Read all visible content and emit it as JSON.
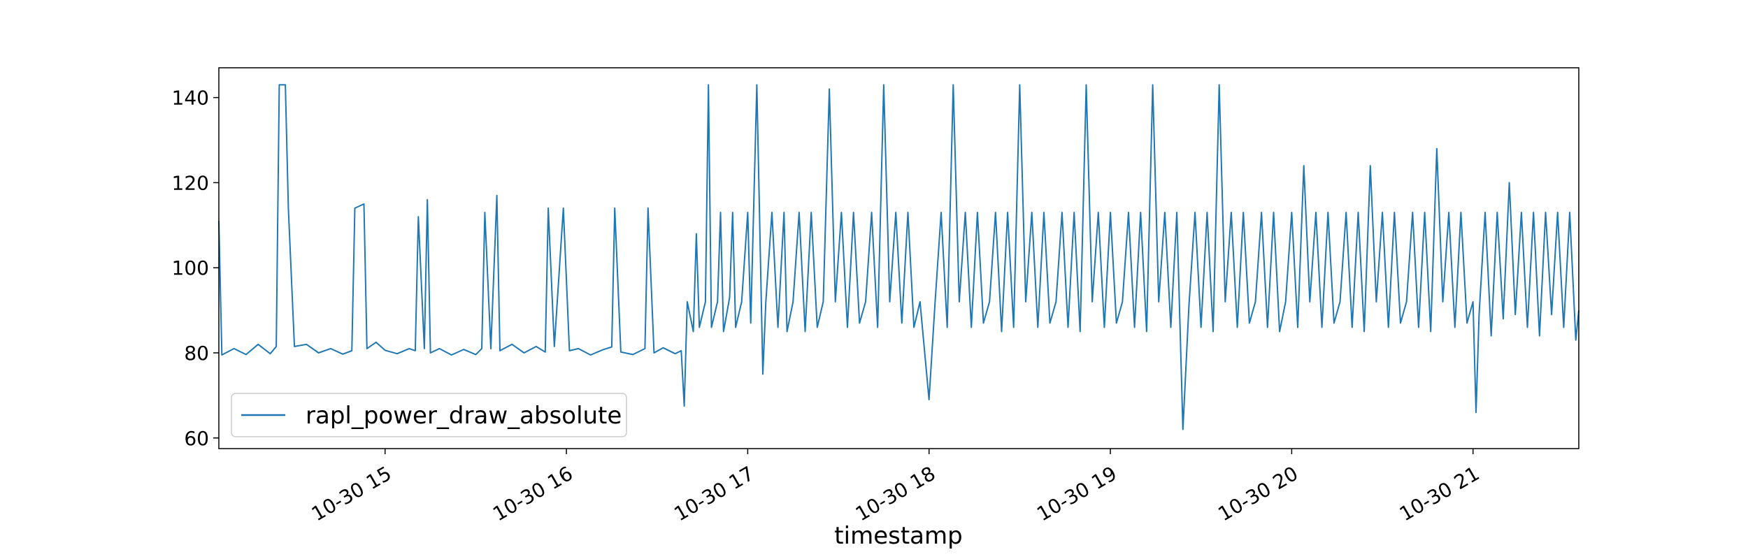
{
  "chart_data": {
    "type": "line",
    "title": "",
    "xlabel": "timestamp",
    "ylabel": "",
    "x_axis": {
      "type": "time",
      "start": "2023-10-30T14:05",
      "end": "2023-10-30T21:35",
      "tick_values": [
        "2023-10-30T15:00",
        "2023-10-30T16:00",
        "2023-10-30T17:00",
        "2023-10-30T18:00",
        "2023-10-30T19:00",
        "2023-10-30T20:00",
        "2023-10-30T21:00"
      ],
      "tick_labels": [
        "10-30 15",
        "10-30 16",
        "10-30 17",
        "10-30 18",
        "10-30 19",
        "10-30 20",
        "10-30 21"
      ]
    },
    "y_axis": {
      "ylim": [
        57.5,
        147
      ],
      "ticks": [
        60,
        80,
        100,
        120,
        140
      ]
    },
    "grid": false,
    "legend": {
      "placement": "lower-left"
    },
    "series": [
      {
        "name": "rapl_power_draw_absolute",
        "color": "#1f77b4",
        "points": [
          [
            "14:05",
            111
          ],
          [
            "14:06",
            79.5
          ],
          [
            "14:10",
            81
          ],
          [
            "14:14",
            79.6
          ],
          [
            "14:18",
            82
          ],
          [
            "14:22",
            79.8
          ],
          [
            "14:24",
            81.5
          ],
          [
            "14:25",
            143
          ],
          [
            "14:27",
            143
          ],
          [
            "14:28",
            114
          ],
          [
            "14:30",
            81.5
          ],
          [
            "14:34",
            82
          ],
          [
            "14:38",
            80
          ],
          [
            "14:42",
            81
          ],
          [
            "14:46",
            79.7
          ],
          [
            "14:49",
            80.5
          ],
          [
            "14:50",
            114
          ],
          [
            "14:53",
            115
          ],
          [
            "14:54",
            81
          ],
          [
            "14:57",
            82.5
          ],
          [
            "15:00",
            80.6
          ],
          [
            "15:04",
            79.8
          ],
          [
            "15:08",
            81
          ],
          [
            "15:10",
            80.5
          ],
          [
            "15:11",
            112
          ],
          [
            "15:13",
            81
          ],
          [
            "15:14",
            116
          ],
          [
            "15:15",
            80
          ],
          [
            "15:18",
            81
          ],
          [
            "15:22",
            79.5
          ],
          [
            "15:26",
            80.8
          ],
          [
            "15:30",
            79.6
          ],
          [
            "15:32",
            81
          ],
          [
            "15:33",
            113
          ],
          [
            "15:35",
            81
          ],
          [
            "15:37",
            117
          ],
          [
            "15:38",
            80.5
          ],
          [
            "15:42",
            82
          ],
          [
            "15:46",
            80
          ],
          [
            "15:50",
            81.5
          ],
          [
            "15:53",
            80.2
          ],
          [
            "15:54",
            114
          ],
          [
            "15:56",
            81.5
          ],
          [
            "15:59",
            114
          ],
          [
            "16:01",
            80.5
          ],
          [
            "16:04",
            81
          ],
          [
            "16:08",
            79.5
          ],
          [
            "16:12",
            80.7
          ],
          [
            "16:15",
            81.4
          ],
          [
            "16:16",
            114
          ],
          [
            "16:18",
            80.2
          ],
          [
            "16:22",
            79.6
          ],
          [
            "16:26",
            81
          ],
          [
            "16:27",
            114
          ],
          [
            "16:29",
            80
          ],
          [
            "16:32",
            81.2
          ],
          [
            "16:36",
            79.8
          ],
          [
            "16:38",
            80.5
          ],
          [
            "16:39",
            67.5
          ],
          [
            "16:40",
            92
          ],
          [
            "16:42",
            85
          ],
          [
            "16:43",
            108
          ],
          [
            "16:44",
            86
          ],
          [
            "16:46",
            92
          ],
          [
            "16:47",
            143
          ],
          [
            "16:48",
            86
          ],
          [
            "16:50",
            92
          ],
          [
            "16:51",
            113
          ],
          [
            "16:52",
            85
          ],
          [
            "16:54",
            93
          ],
          [
            "16:55",
            113
          ],
          [
            "16:56",
            86
          ],
          [
            "16:58",
            92
          ],
          [
            "17:00",
            113
          ],
          [
            "17:01",
            87
          ],
          [
            "17:03",
            143
          ],
          [
            "17:05",
            75
          ],
          [
            "17:06",
            92
          ],
          [
            "17:08",
            113
          ],
          [
            "17:10",
            86
          ],
          [
            "17:12",
            113
          ],
          [
            "17:13",
            85
          ],
          [
            "17:15",
            92
          ],
          [
            "17:17",
            113
          ],
          [
            "17:19",
            85
          ],
          [
            "17:21",
            113
          ],
          [
            "17:23",
            86
          ],
          [
            "17:25",
            92
          ],
          [
            "17:27",
            142
          ],
          [
            "17:29",
            92
          ],
          [
            "17:31",
            113
          ],
          [
            "17:33",
            86
          ],
          [
            "17:35",
            113
          ],
          [
            "17:37",
            87
          ],
          [
            "17:39",
            92
          ],
          [
            "17:41",
            113
          ],
          [
            "17:43",
            86
          ],
          [
            "17:45",
            143
          ],
          [
            "17:47",
            92
          ],
          [
            "17:49",
            113
          ],
          [
            "17:51",
            87
          ],
          [
            "17:53",
            113
          ],
          [
            "17:55",
            86
          ],
          [
            "17:57",
            92
          ],
          [
            "18:00",
            69
          ],
          [
            "18:02",
            92
          ],
          [
            "18:04",
            113
          ],
          [
            "18:06",
            86
          ],
          [
            "18:08",
            143
          ],
          [
            "18:10",
            92
          ],
          [
            "18:12",
            113
          ],
          [
            "18:14",
            86
          ],
          [
            "18:16",
            113
          ],
          [
            "18:18",
            87
          ],
          [
            "18:20",
            92
          ],
          [
            "18:22",
            113
          ],
          [
            "18:24",
            85
          ],
          [
            "18:26",
            113
          ],
          [
            "18:28",
            86
          ],
          [
            "18:30",
            143
          ],
          [
            "18:32",
            92
          ],
          [
            "18:34",
            113
          ],
          [
            "18:36",
            86
          ],
          [
            "18:38",
            113
          ],
          [
            "18:40",
            87
          ],
          [
            "18:42",
            92
          ],
          [
            "18:44",
            113
          ],
          [
            "18:46",
            86
          ],
          [
            "18:48",
            113
          ],
          [
            "18:50",
            85
          ],
          [
            "18:52",
            143
          ],
          [
            "18:54",
            92
          ],
          [
            "18:56",
            113
          ],
          [
            "18:58",
            86
          ],
          [
            "19:00",
            113
          ],
          [
            "19:02",
            87
          ],
          [
            "19:04",
            92
          ],
          [
            "19:06",
            113
          ],
          [
            "19:08",
            86
          ],
          [
            "19:10",
            113
          ],
          [
            "19:12",
            85
          ],
          [
            "19:14",
            143
          ],
          [
            "19:16",
            92
          ],
          [
            "19:18",
            113
          ],
          [
            "19:20",
            86
          ],
          [
            "19:22",
            113
          ],
          [
            "19:24",
            62
          ],
          [
            "19:26",
            91
          ],
          [
            "19:28",
            113
          ],
          [
            "19:30",
            86
          ],
          [
            "19:32",
            113
          ],
          [
            "19:34",
            85
          ],
          [
            "19:36",
            143
          ],
          [
            "19:38",
            92
          ],
          [
            "19:40",
            113
          ],
          [
            "19:42",
            86
          ],
          [
            "19:44",
            113
          ],
          [
            "19:46",
            87
          ],
          [
            "19:48",
            92
          ],
          [
            "19:50",
            113
          ],
          [
            "19:52",
            86
          ],
          [
            "19:54",
            113
          ],
          [
            "19:56",
            85
          ],
          [
            "19:58",
            92
          ],
          [
            "20:00",
            113
          ],
          [
            "20:02",
            86
          ],
          [
            "20:04",
            124
          ],
          [
            "20:06",
            92
          ],
          [
            "20:08",
            113
          ],
          [
            "20:10",
            86
          ],
          [
            "20:12",
            113
          ],
          [
            "20:14",
            87
          ],
          [
            "20:16",
            92
          ],
          [
            "20:18",
            113
          ],
          [
            "20:20",
            86
          ],
          [
            "20:22",
            113
          ],
          [
            "20:24",
            85
          ],
          [
            "20:26",
            124
          ],
          [
            "20:28",
            92
          ],
          [
            "20:30",
            113
          ],
          [
            "20:32",
            86
          ],
          [
            "20:34",
            113
          ],
          [
            "20:36",
            87
          ],
          [
            "20:38",
            92
          ],
          [
            "20:40",
            113
          ],
          [
            "20:42",
            86
          ],
          [
            "20:44",
            113
          ],
          [
            "20:46",
            85
          ],
          [
            "20:48",
            128
          ],
          [
            "20:50",
            92
          ],
          [
            "20:52",
            113
          ],
          [
            "20:54",
            86
          ],
          [
            "20:56",
            113
          ],
          [
            "20:58",
            87
          ],
          [
            "21:00",
            92
          ],
          [
            "21:01",
            66
          ],
          [
            "21:02",
            89
          ],
          [
            "21:04",
            113
          ],
          [
            "21:06",
            84
          ],
          [
            "21:08",
            113
          ],
          [
            "21:10",
            88
          ],
          [
            "21:12",
            120
          ],
          [
            "21:14",
            89
          ],
          [
            "21:16",
            113
          ],
          [
            "21:18",
            86
          ],
          [
            "21:20",
            113
          ],
          [
            "21:22",
            84
          ],
          [
            "21:24",
            113
          ],
          [
            "21:26",
            89
          ],
          [
            "21:28",
            113
          ],
          [
            "21:30",
            86
          ],
          [
            "21:32",
            113
          ],
          [
            "21:34",
            83
          ],
          [
            "21:35",
            90
          ]
        ]
      }
    ]
  }
}
